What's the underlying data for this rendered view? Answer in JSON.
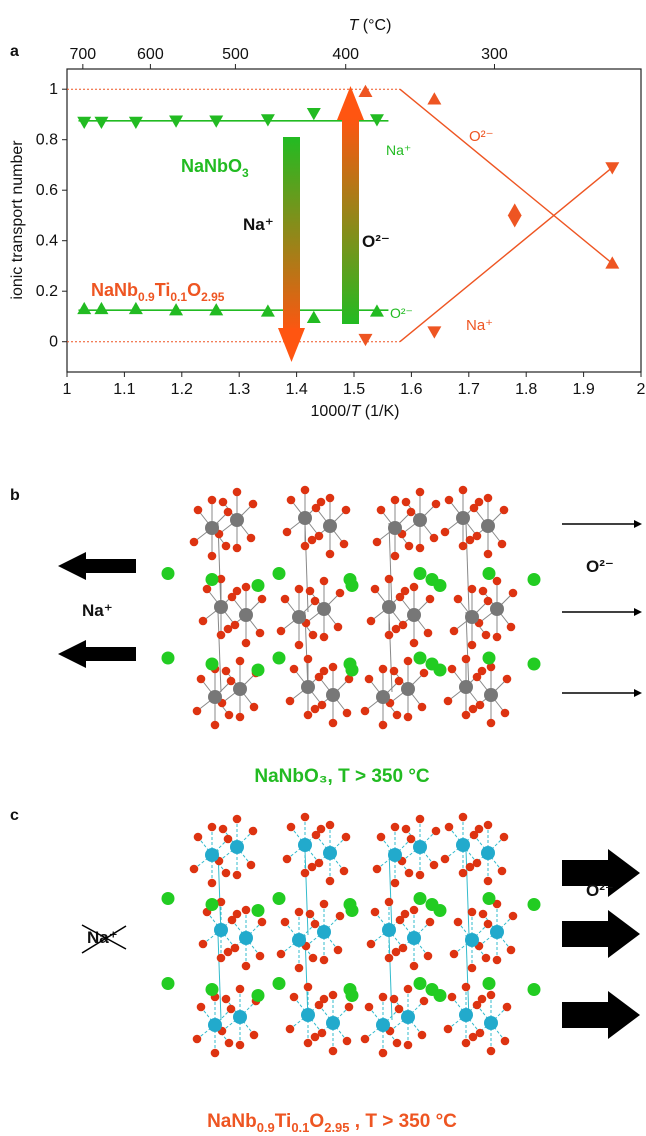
{
  "panels": {
    "a": {
      "label": "a"
    },
    "b": {
      "label": "b",
      "caption": "NaNbO₃, T > 350 °C",
      "left_ion": "Na⁺",
      "right_ion": "O²⁻"
    },
    "c": {
      "label": "c",
      "caption_parts": [
        "NaNb",
        "0.9",
        "Ti",
        "0.1",
        "O",
        "2.95",
        " , T > 350 °C"
      ],
      "left_ion": "Na⁺",
      "right_ion": "O²⁻"
    }
  },
  "chart_data": {
    "type": "scatter",
    "xlabel_parts": [
      "1000/",
      "T",
      " (1/K)"
    ],
    "ylabel": "ionic transport number",
    "top_axis_label_parts": [
      "T",
      " (°C)"
    ],
    "xlim": [
      1,
      2
    ],
    "ylim": [
      -0.12,
      1.08
    ],
    "x_ticks": [
      "1",
      "1.1",
      "1.2",
      "1.3",
      "1.4",
      "1.5",
      "1.6",
      "1.7",
      "1.8",
      "1.9",
      "2"
    ],
    "y_ticks": [
      "0",
      "0.2",
      "0.4",
      "0.6",
      "0.8",
      "1"
    ],
    "top_ticks": [
      "700",
      "600",
      "500",
      "400",
      "300"
    ],
    "colors": {
      "NaNbO3": "#22bb22",
      "NaNb0.9Ti0.1O2.95": "#ee5522"
    },
    "series": [
      {
        "name": "NaNbO₃ Na⁺",
        "marker": "triangle-down",
        "x": [
          1.03,
          1.06,
          1.12,
          1.19,
          1.26,
          1.35,
          1.43,
          1.54
        ],
        "y": [
          0.87,
          0.87,
          0.87,
          0.875,
          0.875,
          0.88,
          0.905,
          0.88
        ]
      },
      {
        "name": "NaNbO₃ O²⁻",
        "marker": "triangle-up",
        "x": [
          1.03,
          1.06,
          1.12,
          1.19,
          1.26,
          1.35,
          1.43,
          1.54
        ],
        "y": [
          0.13,
          0.13,
          0.13,
          0.125,
          0.125,
          0.12,
          0.095,
          0.12
        ]
      },
      {
        "name": "NaNb₀.₉Ti₀.₁O₂.₉₅ O²⁻",
        "marker": "triangle-up",
        "x": [
          1.52,
          1.64,
          1.78,
          1.95
        ],
        "y": [
          0.99,
          0.96,
          0.52,
          0.31
        ]
      },
      {
        "name": "NaNb₀.₉Ti₀.₁O₂.₉₅ Na⁺",
        "marker": "triangle-down",
        "x": [
          1.52,
          1.64,
          1.78,
          1.95
        ],
        "y": [
          0.01,
          0.04,
          0.48,
          0.69
        ]
      }
    ],
    "annotations": {
      "nanbo3": [
        "NaNbO",
        "3"
      ],
      "nanb_ti": [
        "NaNb",
        "0.9",
        "Ti",
        "0.1",
        "O",
        "2.95"
      ],
      "arrow_na": "Na⁺",
      "arrow_o": "O²⁻",
      "green_na": "Na⁺",
      "green_o": "O²⁻",
      "orange_o": "O²⁻",
      "orange_na": "Na⁺"
    }
  }
}
